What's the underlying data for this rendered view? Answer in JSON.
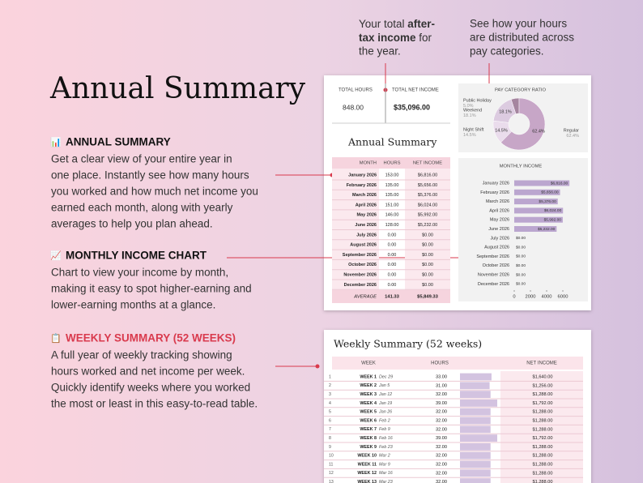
{
  "title": "Annual Summary",
  "callouts": [
    {
      "parts": [
        "Your total ",
        "after-",
        "tax income",
        " for",
        "the year."
      ]
    },
    {
      "lines": [
        "See how your hours",
        "are distributed across",
        "pay categories."
      ]
    }
  ],
  "features": [
    {
      "icon": "📊",
      "heading": "ANNUAL SUMMARY",
      "lines": [
        "Get a clear view of your entire year in",
        "one place. Instantly see how many hours",
        "you worked and how much net income you",
        "earned each month, along with yearly",
        "averages to help you plan ahead."
      ]
    },
    {
      "icon": "📈",
      "heading": "MONTHLY INCOME CHART",
      "lines": [
        "Chart to view your income by month,",
        "making it easy to spot higher-earning and",
        "lower-earning months at a glance."
      ]
    },
    {
      "icon": "📋",
      "heading": "WEEKLY SUMMARY (52 WEEKS)",
      "lines": [
        "A full year of weekly tracking showing",
        "hours worked and net income per week.",
        "Quickly identify weeks where you worked",
        "the most or least in this easy-to-read table."
      ]
    }
  ],
  "annual": {
    "total_hours_label": "TOTAL HOURS",
    "total_hours": "848.00",
    "total_net_label": "TOTAL NET INCOME",
    "total_net": "$35,096.00",
    "table_title": "Annual Summary",
    "headers": [
      "MONTH",
      "HOURS",
      "NET INCOME"
    ],
    "rows": [
      [
        "January 2026",
        "153.00",
        "$6,816.00"
      ],
      [
        "February 2026",
        "135.00",
        "$5,656.00"
      ],
      [
        "March 2026",
        "135.00",
        "$5,376.00"
      ],
      [
        "April 2026",
        "151.00",
        "$6,024.00"
      ],
      [
        "May 2026",
        "146.00",
        "$5,992.00"
      ],
      [
        "June 2026",
        "128.00",
        "$5,232.00"
      ],
      [
        "July 2026",
        "0.00",
        "$0.00"
      ],
      [
        "August 2026",
        "0.00",
        "$0.00"
      ],
      [
        "September 2026",
        "0.00",
        "$0.00"
      ],
      [
        "October 2026",
        "0.00",
        "$0.00"
      ],
      [
        "November 2026",
        "0.00",
        "$0.00"
      ],
      [
        "December 2026",
        "0.00",
        "$0.00"
      ]
    ],
    "average": [
      "AVERAGE",
      "141.33",
      "$5,849.33"
    ]
  },
  "pay_chart": {
    "type": "pie",
    "title": "PAY CATEGORY RATIO",
    "categories": [
      "Public Holiday",
      "Weekend",
      "Night Shift",
      "Regular"
    ],
    "values": [
      5.0,
      18.1,
      14.5,
      62.4
    ],
    "value_labels": [
      "5.0%",
      "18.1%",
      "14.5%",
      "62.4%"
    ],
    "colors": [
      "#a5859f",
      "#dccbe0",
      "#eadcec",
      "#c7a6c7"
    ]
  },
  "income_chart": {
    "type": "bar",
    "title": "MONTHLY INCOME",
    "categories": [
      "January 2026",
      "February 2026",
      "March 2026",
      "April 2026",
      "May 2026",
      "June 2026",
      "July 2026",
      "August 2026",
      "September 2026",
      "October 2026",
      "November 2026",
      "December 2026"
    ],
    "values": [
      6816,
      5656,
      5376,
      6024,
      5992,
      5232,
      0,
      0,
      0,
      0,
      0,
      0
    ],
    "value_labels": [
      "$6,816.00",
      "$5,656.00",
      "$5,376.00",
      "$6,024.00",
      "$5,992.00",
      "$5,232.00",
      "$0.00",
      "$0.00",
      "$0.00",
      "$0.00",
      "$0.00",
      "$0.00"
    ],
    "color": "#bba6cf",
    "xlim": [
      0,
      7000
    ],
    "xticks": [
      0,
      2000,
      4000,
      6000
    ]
  },
  "weekly": {
    "title": "Weekly Summary (52 weeks)",
    "headers": [
      "WEEK",
      "HOURS",
      "NET INCOME"
    ],
    "rows": [
      [
        "1",
        "WEEK 1",
        "Dec 29",
        "33.00",
        "$1,640.00"
      ],
      [
        "2",
        "WEEK 2",
        "Jan 5",
        "31.00",
        "$1,256.00"
      ],
      [
        "3",
        "WEEK 3",
        "Jan 12",
        "32.00",
        "$1,288.00"
      ],
      [
        "4",
        "WEEK 4",
        "Jan 19",
        "39.00",
        "$1,792.00"
      ],
      [
        "5",
        "WEEK 5",
        "Jan 26",
        "32.00",
        "$1,288.00"
      ],
      [
        "6",
        "WEEK 6",
        "Feb 2",
        "32.00",
        "$1,288.00"
      ],
      [
        "7",
        "WEEK 7",
        "Feb 9",
        "32.00",
        "$1,288.00"
      ],
      [
        "8",
        "WEEK 8",
        "Feb 16",
        "39.00",
        "$1,792.00"
      ],
      [
        "9",
        "WEEK 9",
        "Feb 23",
        "32.00",
        "$1,288.00"
      ],
      [
        "10",
        "WEEK 10",
        "Mar 2",
        "32.00",
        "$1,288.00"
      ],
      [
        "11",
        "WEEK 11",
        "Mar 9",
        "32.00",
        "$1,288.00"
      ],
      [
        "12",
        "WEEK 12",
        "Mar 16",
        "32.00",
        "$1,288.00"
      ],
      [
        "13",
        "WEEK 13",
        "Mar 23",
        "32.00",
        "$1,288.00"
      ]
    ]
  }
}
